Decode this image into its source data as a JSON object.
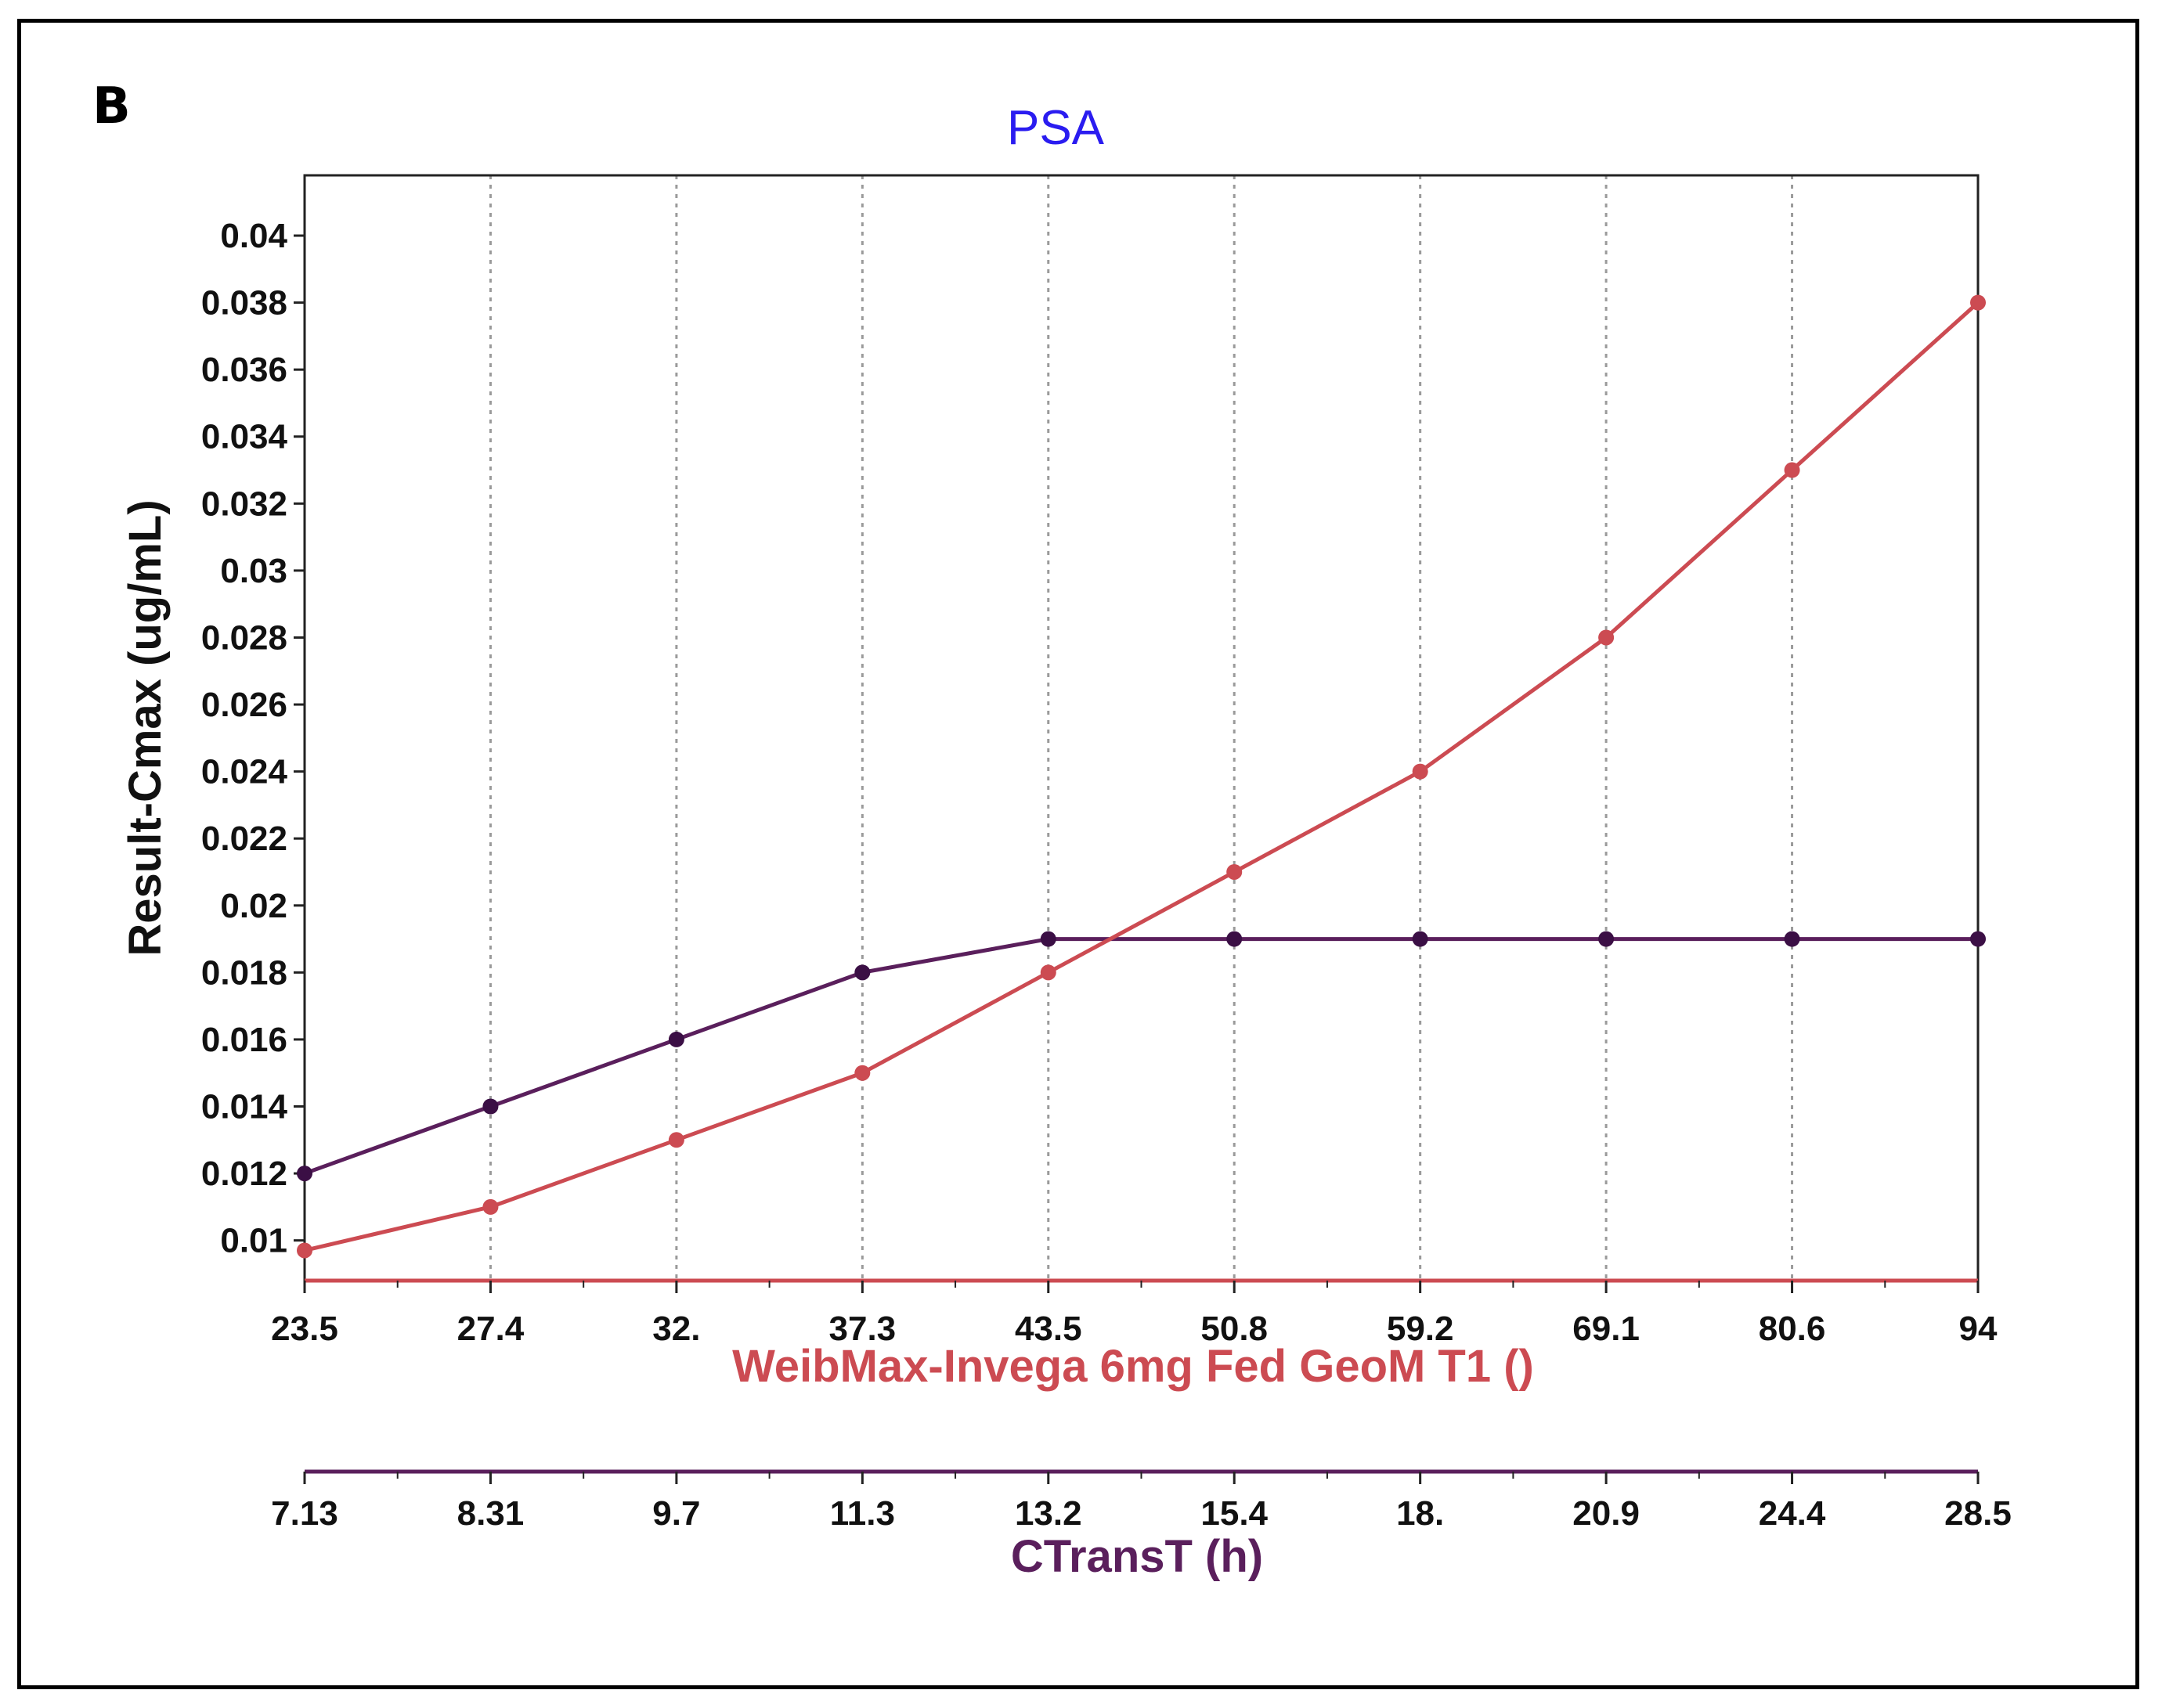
{
  "panel_label": "B",
  "colors": {
    "title": "#2a1cf0",
    "series_red": "#cc4b52",
    "series_purple": "#5a1f5c",
    "purple_marker": "#3b0f45",
    "grid": "#9a9a9a",
    "axis": "#222222"
  },
  "chart_data": {
    "type": "line",
    "title": "PSA",
    "ylabel": "Result-Cmax (ug/mL)",
    "ylim": [
      0.0088,
      0.0418
    ],
    "y_ticks": [
      0.01,
      0.012,
      0.014,
      0.016,
      0.018,
      0.02,
      0.022,
      0.024,
      0.026,
      0.028,
      0.03,
      0.032,
      0.034,
      0.036,
      0.038,
      0.04
    ],
    "y_tick_labels": [
      "0.01",
      "0.012",
      "0.014",
      "0.016",
      "0.018",
      "0.02",
      "0.022",
      "0.024",
      "0.026",
      "0.028",
      "0.03",
      "0.032",
      "0.034",
      "0.036",
      "0.038",
      "0.04"
    ],
    "x_axes": [
      {
        "name": "primary",
        "label": "WeibMax-Invega 6mg Fed GeoM T1 ()",
        "tick_labels": [
          "23.5",
          "27.4",
          "32.",
          "37.3",
          "43.5",
          "50.8",
          "59.2",
          "69.1",
          "80.6",
          "94"
        ]
      },
      {
        "name": "secondary",
        "label": "CTransT (h)",
        "tick_labels": [
          "7.13",
          "8.31",
          "9.7",
          "11.3",
          "13.2",
          "15.4",
          "18.",
          "20.9",
          "24.4",
          "28.5"
        ]
      }
    ],
    "series": [
      {
        "name": "WeibMax-Invega 6mg Fed GeoM T1",
        "color": "#cc4b52",
        "values": [
          0.0097,
          0.011,
          0.013,
          0.015,
          0.018,
          0.021,
          0.024,
          0.028,
          0.033,
          0.038
        ]
      },
      {
        "name": "CTransT",
        "color": "#5a1f5c",
        "values": [
          0.012,
          0.014,
          0.016,
          0.018,
          0.019,
          0.019,
          0.019,
          0.019,
          0.019,
          0.019
        ]
      }
    ]
  }
}
